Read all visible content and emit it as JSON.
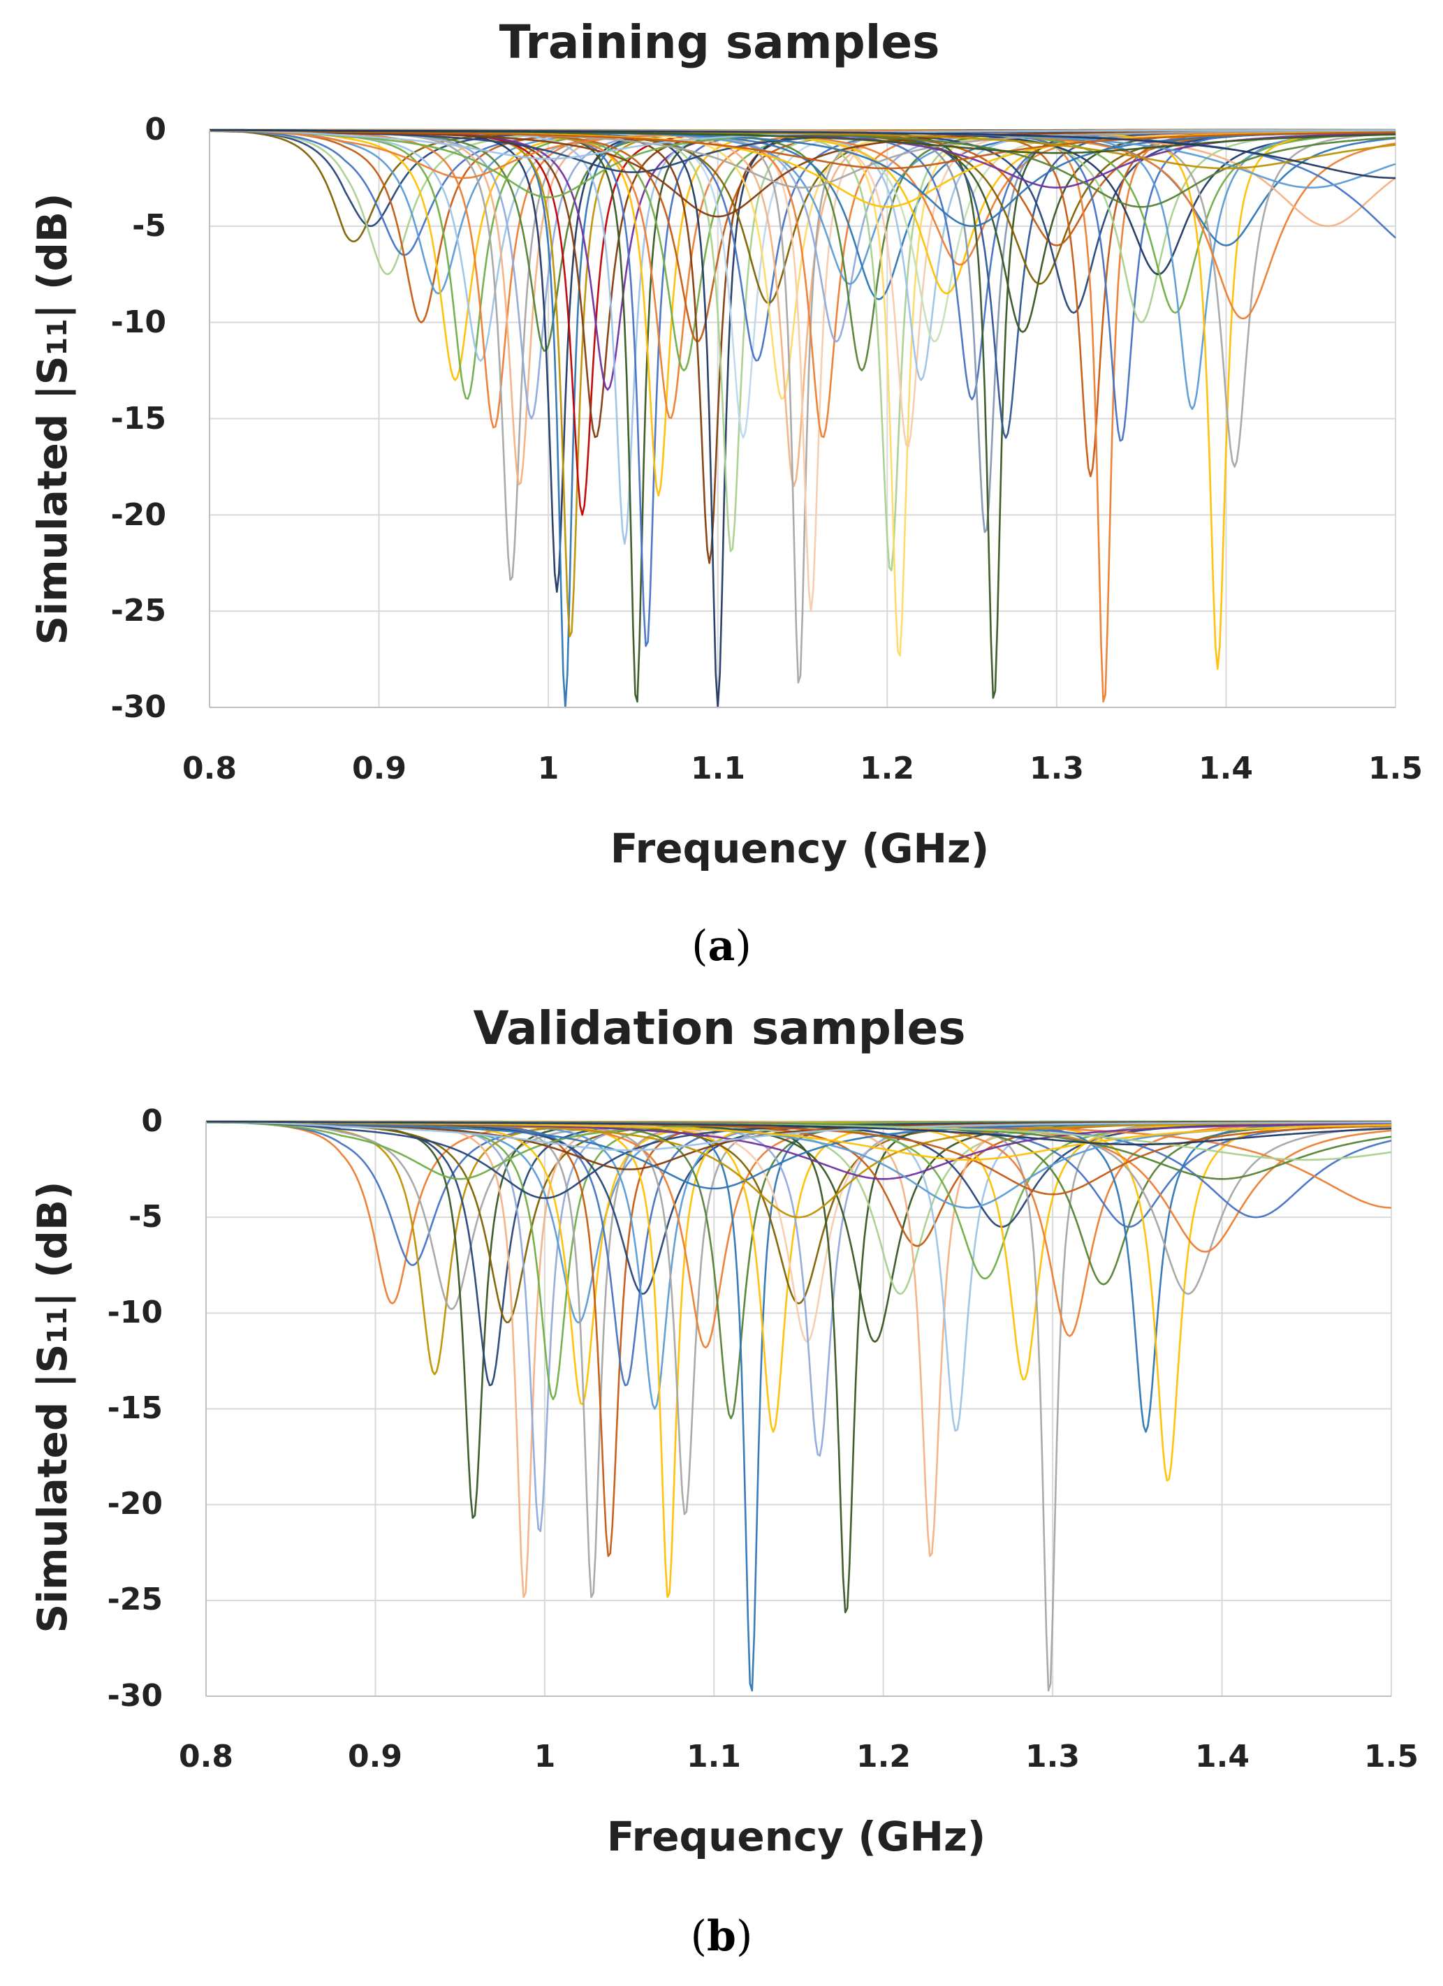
{
  "figure": {
    "panels": [
      {
        "label_open": "(",
        "label_letter": "a",
        "label_close": ")"
      },
      {
        "label_open": "(",
        "label_letter": "b",
        "label_close": ")"
      }
    ]
  },
  "chart_data": [
    {
      "type": "line",
      "title": "Training samples",
      "xlabel": "Frequency (GHz)",
      "ylabel_prefix": "Simulated |S",
      "ylabel_sub": "11",
      "ylabel_suffix": "| (dB)",
      "xlim": [
        0.8,
        1.5
      ],
      "ylim": [
        -30,
        0
      ],
      "xticks": [
        0.8,
        0.9,
        1.0,
        1.1,
        1.2,
        1.3,
        1.4,
        1.5
      ],
      "xtick_labels": [
        "0.8",
        "0.9",
        "1",
        "1.1",
        "1.2",
        "1.3",
        "1.4",
        "1.5"
      ],
      "yticks": [
        0,
        -5,
        -10,
        -15,
        -20,
        -25,
        -30
      ],
      "ytick_labels": [
        "0",
        "-5",
        "-10",
        "-15",
        "-20",
        "-25",
        "-30"
      ],
      "grid": true,
      "series_model": "resonance: S11(f) = depth / (1 + ((f - f0)/width)^2), approx. from image",
      "series": [
        {
          "f0": 0.885,
          "depth": -5.8,
          "width": 0.018,
          "color": "#7f6000"
        },
        {
          "f0": 0.895,
          "depth": -5.0,
          "width": 0.02,
          "color": "#264478"
        },
        {
          "f0": 0.905,
          "depth": -7.5,
          "width": 0.017,
          "color": "#a9d18e"
        },
        {
          "f0": 0.915,
          "depth": -6.5,
          "width": 0.02,
          "color": "#4472c4"
        },
        {
          "f0": 0.925,
          "depth": -10.0,
          "width": 0.014,
          "color": "#c55a11"
        },
        {
          "f0": 0.935,
          "depth": -8.5,
          "width": 0.016,
          "color": "#5b9bd5"
        },
        {
          "f0": 0.945,
          "depth": -13.0,
          "width": 0.012,
          "color": "#ffc000"
        },
        {
          "f0": 0.952,
          "depth": -14.0,
          "width": 0.011,
          "color": "#70ad47"
        },
        {
          "f0": 0.96,
          "depth": -12.0,
          "width": 0.013,
          "color": "#9dc3e6"
        },
        {
          "f0": 0.968,
          "depth": -15.5,
          "width": 0.01,
          "color": "#ed7d31"
        },
        {
          "f0": 0.978,
          "depth": -23.5,
          "width": 0.007,
          "color": "#a5a5a5"
        },
        {
          "f0": 0.983,
          "depth": -18.5,
          "width": 0.008,
          "color": "#f4b183"
        },
        {
          "f0": 0.99,
          "depth": -15.0,
          "width": 0.01,
          "color": "#8faadc"
        },
        {
          "f0": 0.998,
          "depth": -11.5,
          "width": 0.012,
          "color": "#548235"
        },
        {
          "f0": 1.005,
          "depth": -24.0,
          "width": 0.006,
          "color": "#203864"
        },
        {
          "f0": 1.01,
          "depth": -30.0,
          "width": 0.005,
          "color": "#2e75b6"
        },
        {
          "f0": 1.013,
          "depth": -26.5,
          "width": 0.006,
          "color": "#bf9000"
        },
        {
          "f0": 1.02,
          "depth": -20.0,
          "width": 0.008,
          "color": "#c00000"
        },
        {
          "f0": 1.028,
          "depth": -16.0,
          "width": 0.01,
          "color": "#843c0c"
        },
        {
          "f0": 1.035,
          "depth": -13.5,
          "width": 0.012,
          "color": "#7030a0"
        },
        {
          "f0": 1.045,
          "depth": -21.5,
          "width": 0.007,
          "color": "#9dc3e6"
        },
        {
          "f0": 1.052,
          "depth": -30.0,
          "width": 0.005,
          "color": "#375623"
        },
        {
          "f0": 1.058,
          "depth": -27.0,
          "width": 0.006,
          "color": "#4472c4"
        },
        {
          "f0": 1.065,
          "depth": -19.0,
          "width": 0.008,
          "color": "#ffc000"
        },
        {
          "f0": 1.072,
          "depth": -15.0,
          "width": 0.011,
          "color": "#ed7d31"
        },
        {
          "f0": 1.08,
          "depth": -12.5,
          "width": 0.013,
          "color": "#70ad47"
        },
        {
          "f0": 1.088,
          "depth": -11.0,
          "width": 0.015,
          "color": "#c55a11"
        },
        {
          "f0": 1.095,
          "depth": -22.5,
          "width": 0.007,
          "color": "#843c0c"
        },
        {
          "f0": 1.1,
          "depth": -30.0,
          "width": 0.005,
          "color": "#1f3864"
        },
        {
          "f0": 1.108,
          "depth": -22.0,
          "width": 0.007,
          "color": "#a9d18e"
        },
        {
          "f0": 1.115,
          "depth": -16.0,
          "width": 0.009,
          "color": "#bdd7ee"
        },
        {
          "f0": 1.123,
          "depth": -12.0,
          "width": 0.013,
          "color": "#4472c4"
        },
        {
          "f0": 1.13,
          "depth": -9.0,
          "width": 0.018,
          "color": "#7f6000"
        },
        {
          "f0": 1.138,
          "depth": -14.0,
          "width": 0.011,
          "color": "#ffd966"
        },
        {
          "f0": 1.145,
          "depth": -18.5,
          "width": 0.009,
          "color": "#f4b183"
        },
        {
          "f0": 1.148,
          "depth": -29.0,
          "width": 0.005,
          "color": "#a5a5a5"
        },
        {
          "f0": 1.155,
          "depth": -25.0,
          "width": 0.006,
          "color": "#f8cbad"
        },
        {
          "f0": 1.162,
          "depth": -16.0,
          "width": 0.01,
          "color": "#ed7d31"
        },
        {
          "f0": 1.17,
          "depth": -11.0,
          "width": 0.014,
          "color": "#8faadc"
        },
        {
          "f0": 1.178,
          "depth": -8.0,
          "width": 0.02,
          "color": "#5b9bd5"
        },
        {
          "f0": 1.185,
          "depth": -12.5,
          "width": 0.012,
          "color": "#548235"
        },
        {
          "f0": 1.195,
          "depth": -8.8,
          "width": 0.02,
          "color": "#2e75b6"
        },
        {
          "f0": 1.202,
          "depth": -23.0,
          "width": 0.007,
          "color": "#a9d18e"
        },
        {
          "f0": 1.207,
          "depth": -27.5,
          "width": 0.006,
          "color": "#ffd966"
        },
        {
          "f0": 1.212,
          "depth": -16.5,
          "width": 0.009,
          "color": "#f8cbad"
        },
        {
          "f0": 1.22,
          "depth": -13.0,
          "width": 0.011,
          "color": "#9dc3e6"
        },
        {
          "f0": 1.228,
          "depth": -11.0,
          "width": 0.015,
          "color": "#c5e0b4"
        },
        {
          "f0": 1.235,
          "depth": -8.5,
          "width": 0.02,
          "color": "#ffc000"
        },
        {
          "f0": 1.243,
          "depth": -7.0,
          "width": 0.022,
          "color": "#ed7d31"
        },
        {
          "f0": 1.25,
          "depth": -14.0,
          "width": 0.011,
          "color": "#4472c4"
        },
        {
          "f0": 1.258,
          "depth": -21.0,
          "width": 0.007,
          "color": "#8497b0"
        },
        {
          "f0": 1.263,
          "depth": -29.8,
          "width": 0.005,
          "color": "#375623"
        },
        {
          "f0": 1.27,
          "depth": -16.0,
          "width": 0.01,
          "color": "#2f5597"
        },
        {
          "f0": 1.28,
          "depth": -10.5,
          "width": 0.016,
          "color": "#375623"
        },
        {
          "f0": 1.29,
          "depth": -8.0,
          "width": 0.022,
          "color": "#7f6000"
        },
        {
          "f0": 1.3,
          "depth": -6.0,
          "width": 0.025,
          "color": "#c55a11"
        },
        {
          "f0": 1.31,
          "depth": -9.5,
          "width": 0.018,
          "color": "#264478"
        },
        {
          "f0": 1.32,
          "depth": -18.0,
          "width": 0.008,
          "color": "#c55a11"
        },
        {
          "f0": 1.328,
          "depth": -30.0,
          "width": 0.005,
          "color": "#ed7d31"
        },
        {
          "f0": 1.338,
          "depth": -16.2,
          "width": 0.009,
          "color": "#4472c4"
        },
        {
          "f0": 1.35,
          "depth": -10.0,
          "width": 0.016,
          "color": "#a9d18e"
        },
        {
          "f0": 1.36,
          "depth": -7.5,
          "width": 0.022,
          "color": "#1f3864"
        },
        {
          "f0": 1.37,
          "depth": -9.5,
          "width": 0.018,
          "color": "#70ad47"
        },
        {
          "f0": 1.38,
          "depth": -14.5,
          "width": 0.011,
          "color": "#5b9bd5"
        },
        {
          "f0": 1.395,
          "depth": -28.0,
          "width": 0.006,
          "color": "#ffc000"
        },
        {
          "f0": 1.4,
          "depth": -6.0,
          "width": 0.028,
          "color": "#2e75b6"
        },
        {
          "f0": 1.405,
          "depth": -17.5,
          "width": 0.01,
          "color": "#a5a5a5"
        },
        {
          "f0": 1.41,
          "depth": -9.8,
          "width": 0.025,
          "color": "#ed7d31"
        },
        {
          "f0": 1.46,
          "depth": -5.0,
          "width": 0.04,
          "color": "#f4b183"
        },
        {
          "f0": 1.52,
          "depth": -6.5,
          "width": 0.05,
          "color": "#4472c4"
        },
        {
          "f0": 0.95,
          "depth": -2.5,
          "width": 0.04,
          "color": "#ed7d31"
        },
        {
          "f0": 1.0,
          "depth": -3.5,
          "width": 0.04,
          "color": "#70ad47"
        },
        {
          "f0": 1.05,
          "depth": -2.2,
          "width": 0.05,
          "color": "#264478"
        },
        {
          "f0": 1.1,
          "depth": -4.5,
          "width": 0.04,
          "color": "#843c0c"
        },
        {
          "f0": 1.15,
          "depth": -3.0,
          "width": 0.05,
          "color": "#a5a5a5"
        },
        {
          "f0": 1.2,
          "depth": -4.0,
          "width": 0.05,
          "color": "#ffc000"
        },
        {
          "f0": 1.25,
          "depth": -5.0,
          "width": 0.04,
          "color": "#2e75b6"
        },
        {
          "f0": 1.3,
          "depth": -3.0,
          "width": 0.05,
          "color": "#7030a0"
        },
        {
          "f0": 1.35,
          "depth": -4.0,
          "width": 0.05,
          "color": "#548235"
        },
        {
          "f0": 1.45,
          "depth": -3.0,
          "width": 0.06,
          "color": "#5b9bd5"
        },
        {
          "f0": 1.0,
          "depth": -1.5,
          "width": 0.06,
          "color": "#9dc3e6"
        },
        {
          "f0": 1.2,
          "depth": -2.0,
          "width": 0.08,
          "color": "#c55a11"
        },
        {
          "f0": 1.4,
          "depth": -2.0,
          "width": 0.08,
          "color": "#bf9000"
        },
        {
          "f0": 1.3,
          "depth": -1.2,
          "width": 0.1,
          "color": "#375623"
        },
        {
          "f0": 1.5,
          "depth": -2.5,
          "width": 0.08,
          "color": "#203864"
        }
      ]
    },
    {
      "type": "line",
      "title": "Validation samples",
      "xlabel": "Frequency (GHz)",
      "ylabel_prefix": "Simulated |S",
      "ylabel_sub": "11",
      "ylabel_suffix": "| (dB)",
      "xlim": [
        0.8,
        1.5
      ],
      "ylim": [
        -30,
        0
      ],
      "xticks": [
        0.8,
        0.9,
        1.0,
        1.1,
        1.2,
        1.3,
        1.4,
        1.5
      ],
      "xtick_labels": [
        "0.8",
        "0.9",
        "1",
        "1.1",
        "1.2",
        "1.3",
        "1.4",
        "1.5"
      ],
      "yticks": [
        0,
        -5,
        -10,
        -15,
        -20,
        -25,
        -30
      ],
      "ytick_labels": [
        "0",
        "-5",
        "-10",
        "-15",
        "-20",
        "-25",
        "-30"
      ],
      "grid": true,
      "series_model": "resonance: S11(f) = depth / (1 + ((f - f0)/width)^2), approx. from image",
      "series": [
        {
          "f0": 0.91,
          "depth": -9.5,
          "width": 0.014,
          "color": "#ed7d31"
        },
        {
          "f0": 0.922,
          "depth": -7.5,
          "width": 0.018,
          "color": "#4472c4"
        },
        {
          "f0": 0.935,
          "depth": -13.2,
          "width": 0.011,
          "color": "#bf9000"
        },
        {
          "f0": 0.945,
          "depth": -9.8,
          "width": 0.016,
          "color": "#a5a5a5"
        },
        {
          "f0": 0.958,
          "depth": -20.8,
          "width": 0.007,
          "color": "#375623"
        },
        {
          "f0": 0.968,
          "depth": -13.8,
          "width": 0.011,
          "color": "#264478"
        },
        {
          "f0": 0.978,
          "depth": -10.5,
          "width": 0.015,
          "color": "#7f6000"
        },
        {
          "f0": 0.988,
          "depth": -25.0,
          "width": 0.006,
          "color": "#f4b183"
        },
        {
          "f0": 0.997,
          "depth": -21.5,
          "width": 0.007,
          "color": "#8faadc"
        },
        {
          "f0": 1.005,
          "depth": -14.5,
          "width": 0.01,
          "color": "#70ad47"
        },
        {
          "f0": 1.02,
          "depth": -10.5,
          "width": 0.015,
          "color": "#5b9bd5"
        },
        {
          "f0": 1.022,
          "depth": -14.8,
          "width": 0.01,
          "color": "#ffc000"
        },
        {
          "f0": 1.028,
          "depth": -25.0,
          "width": 0.006,
          "color": "#a5a5a5"
        },
        {
          "f0": 1.038,
          "depth": -22.8,
          "width": 0.007,
          "color": "#c55a11"
        },
        {
          "f0": 1.048,
          "depth": -13.8,
          "width": 0.011,
          "color": "#4472c4"
        },
        {
          "f0": 1.058,
          "depth": -9.0,
          "width": 0.018,
          "color": "#264478"
        },
        {
          "f0": 1.065,
          "depth": -15.0,
          "width": 0.01,
          "color": "#5b9bd5"
        },
        {
          "f0": 1.073,
          "depth": -25.0,
          "width": 0.006,
          "color": "#ffc000"
        },
        {
          "f0": 1.083,
          "depth": -20.6,
          "width": 0.007,
          "color": "#a5a5a5"
        },
        {
          "f0": 1.095,
          "depth": -11.8,
          "width": 0.014,
          "color": "#ed7d31"
        },
        {
          "f0": 1.11,
          "depth": -15.5,
          "width": 0.01,
          "color": "#548235"
        },
        {
          "f0": 1.122,
          "depth": -30.0,
          "width": 0.005,
          "color": "#2e75b6"
        },
        {
          "f0": 1.135,
          "depth": -16.2,
          "width": 0.009,
          "color": "#ffc000"
        },
        {
          "f0": 1.15,
          "depth": -9.5,
          "width": 0.018,
          "color": "#7f6000"
        },
        {
          "f0": 1.155,
          "depth": -11.5,
          "width": 0.014,
          "color": "#f8cbad"
        },
        {
          "f0": 1.162,
          "depth": -17.5,
          "width": 0.009,
          "color": "#8faadc"
        },
        {
          "f0": 1.178,
          "depth": -25.8,
          "width": 0.006,
          "color": "#375623"
        },
        {
          "f0": 1.195,
          "depth": -11.5,
          "width": 0.016,
          "color": "#375623"
        },
        {
          "f0": 1.21,
          "depth": -9.0,
          "width": 0.018,
          "color": "#a9d18e"
        },
        {
          "f0": 1.22,
          "depth": -6.5,
          "width": 0.022,
          "color": "#c55a11"
        },
        {
          "f0": 1.228,
          "depth": -22.8,
          "width": 0.007,
          "color": "#f4b183"
        },
        {
          "f0": 1.243,
          "depth": -16.2,
          "width": 0.009,
          "color": "#9dc3e6"
        },
        {
          "f0": 1.26,
          "depth": -8.2,
          "width": 0.02,
          "color": "#70ad47"
        },
        {
          "f0": 1.27,
          "depth": -5.5,
          "width": 0.025,
          "color": "#264478"
        },
        {
          "f0": 1.283,
          "depth": -13.5,
          "width": 0.011,
          "color": "#ffc000"
        },
        {
          "f0": 1.298,
          "depth": -30.0,
          "width": 0.005,
          "color": "#a5a5a5"
        },
        {
          "f0": 1.31,
          "depth": -11.2,
          "width": 0.016,
          "color": "#ed7d31"
        },
        {
          "f0": 1.33,
          "depth": -8.5,
          "width": 0.02,
          "color": "#548235"
        },
        {
          "f0": 1.345,
          "depth": -5.5,
          "width": 0.028,
          "color": "#4472c4"
        },
        {
          "f0": 1.355,
          "depth": -16.2,
          "width": 0.009,
          "color": "#2e75b6"
        },
        {
          "f0": 1.368,
          "depth": -18.8,
          "width": 0.009,
          "color": "#ffc000"
        },
        {
          "f0": 1.38,
          "depth": -9.0,
          "width": 0.022,
          "color": "#a5a5a5"
        },
        {
          "f0": 1.39,
          "depth": -6.8,
          "width": 0.03,
          "color": "#ed7d31"
        },
        {
          "f0": 1.42,
          "depth": -5.0,
          "width": 0.04,
          "color": "#4472c4"
        },
        {
          "f0": 1.5,
          "depth": -4.5,
          "width": 0.06,
          "color": "#ed7d31"
        },
        {
          "f0": 0.95,
          "depth": -3.0,
          "width": 0.04,
          "color": "#70ad47"
        },
        {
          "f0": 1.0,
          "depth": -4.0,
          "width": 0.04,
          "color": "#264478"
        },
        {
          "f0": 1.05,
          "depth": -2.5,
          "width": 0.05,
          "color": "#843c0c"
        },
        {
          "f0": 1.1,
          "depth": -3.5,
          "width": 0.05,
          "color": "#2e75b6"
        },
        {
          "f0": 1.15,
          "depth": -5.0,
          "width": 0.04,
          "color": "#bf9000"
        },
        {
          "f0": 1.2,
          "depth": -3.0,
          "width": 0.06,
          "color": "#7030a0"
        },
        {
          "f0": 1.25,
          "depth": -4.5,
          "width": 0.05,
          "color": "#5b9bd5"
        },
        {
          "f0": 1.3,
          "depth": -3.8,
          "width": 0.05,
          "color": "#c55a11"
        },
        {
          "f0": 1.4,
          "depth": -3.0,
          "width": 0.06,
          "color": "#548235"
        },
        {
          "f0": 1.05,
          "depth": -1.5,
          "width": 0.08,
          "color": "#9dc3e6"
        },
        {
          "f0": 1.25,
          "depth": -2.0,
          "width": 0.08,
          "color": "#ffc000"
        },
        {
          "f0": 1.45,
          "depth": -2.0,
          "width": 0.1,
          "color": "#a9d18e"
        },
        {
          "f0": 1.35,
          "depth": -1.2,
          "width": 0.1,
          "color": "#203864"
        }
      ]
    }
  ]
}
